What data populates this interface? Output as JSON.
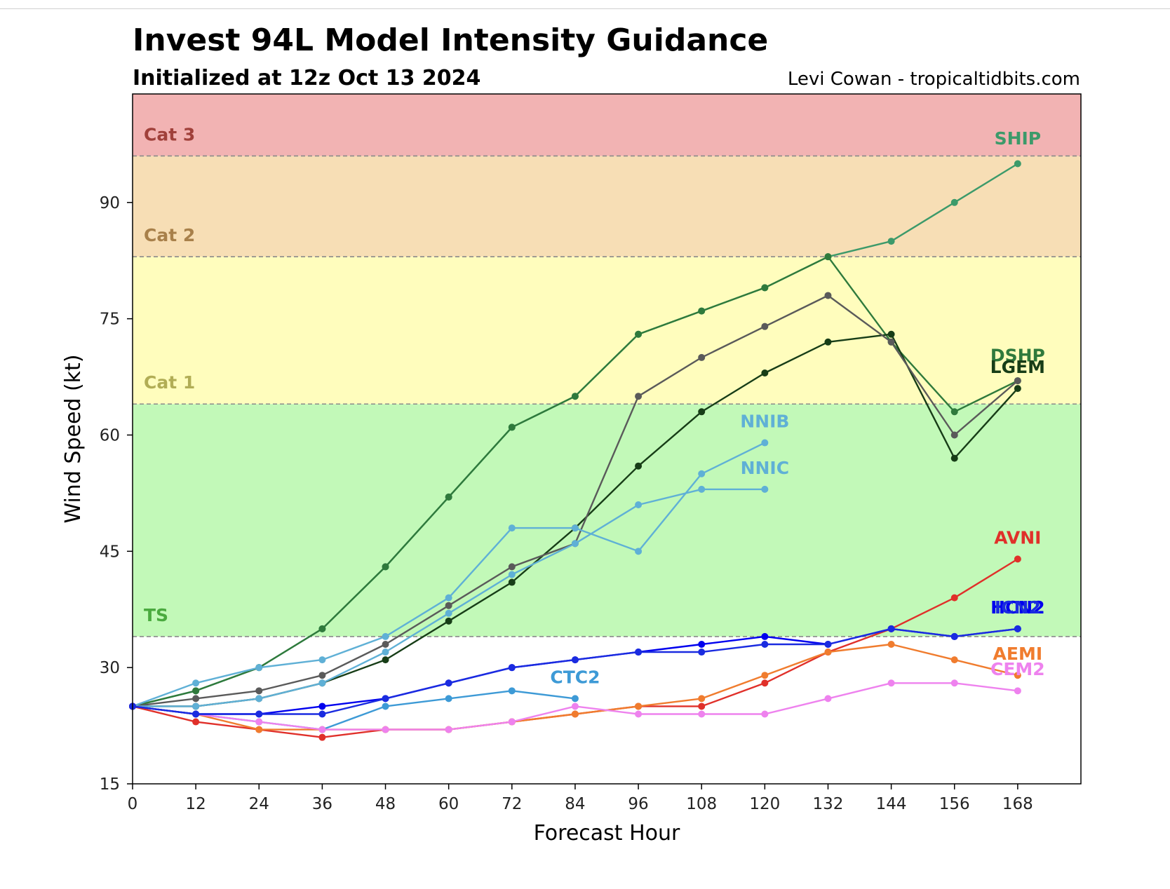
{
  "header": {
    "title": "Invest 94L Model Intensity Guidance",
    "subtitle": "Initialized at 12z Oct 13 2024",
    "credit": "Levi Cowan - tropicaltidbits.com"
  },
  "chart_data": {
    "type": "line",
    "xlabel": "Forecast Hour",
    "ylabel": "Wind Speed (kt)",
    "xlim": [
      0,
      180
    ],
    "ylim": [
      15,
      104
    ],
    "xticks": [
      0,
      12,
      24,
      36,
      48,
      60,
      72,
      84,
      96,
      108,
      120,
      132,
      144,
      156,
      168
    ],
    "yticks": [
      15,
      30,
      45,
      60,
      75,
      90
    ],
    "grid": false,
    "bands": [
      {
        "label": "",
        "from": 15,
        "to": 34,
        "color": "#ffffff"
      },
      {
        "label": "TS",
        "from": 34,
        "to": 64,
        "color": "#c2f9b8",
        "text_color": "#4aaa3f"
      },
      {
        "label": "Cat 1",
        "from": 64,
        "to": 83,
        "color": "#fffdbd",
        "text_color": "#b1ad55"
      },
      {
        "label": "Cat 2",
        "from": 83,
        "to": 96,
        "color": "#f7deb5",
        "text_color": "#a8804a"
      },
      {
        "label": "Cat 3",
        "from": 96,
        "to": 104,
        "color": "#f2b3b3",
        "text_color": "#a0403a"
      }
    ],
    "series": [
      {
        "name": "SHIP",
        "color": "#3c9a6a",
        "x": [
          0,
          12,
          24,
          36,
          48,
          60,
          72,
          84,
          96,
          108,
          120,
          132,
          144,
          156,
          168
        ],
        "values": [
          25,
          27,
          30,
          35,
          43,
          52,
          61,
          65,
          73,
          76,
          79,
          83,
          85,
          90,
          95
        ]
      },
      {
        "name": "DSHP",
        "color": "#2f7a3c",
        "x": [
          0,
          12,
          24,
          36,
          48,
          60,
          72,
          84,
          96,
          108,
          120,
          132,
          144,
          156,
          168
        ],
        "values": [
          25,
          27,
          30,
          35,
          43,
          52,
          61,
          65,
          73,
          76,
          79,
          83,
          72,
          63,
          67
        ]
      },
      {
        "name": "LGEM",
        "color": "#173d17",
        "x": [
          0,
          12,
          24,
          36,
          48,
          60,
          72,
          84,
          96,
          108,
          120,
          132,
          144,
          156,
          168
        ],
        "values": [
          25,
          25,
          26,
          28,
          31,
          36,
          41,
          48,
          56,
          63,
          68,
          72,
          73,
          57,
          66
        ]
      },
      {
        "name": "",
        "color": "#5a5a5a",
        "x": [
          0,
          12,
          24,
          36,
          48,
          60,
          72,
          84,
          96,
          108,
          120,
          132,
          144,
          156,
          168
        ],
        "values": [
          25,
          26,
          27,
          29,
          33,
          38,
          43,
          46,
          65,
          70,
          74,
          78,
          72,
          60,
          67
        ]
      },
      {
        "name": "NNIB",
        "color": "#5fb0d6",
        "x": [
          0,
          12,
          24,
          36,
          48,
          60,
          72,
          84,
          96,
          108,
          120
        ],
        "values": [
          25,
          28,
          30,
          31,
          34,
          39,
          48,
          48,
          45,
          55,
          59
        ]
      },
      {
        "name": "NNIC",
        "color": "#5fb0d6",
        "x": [
          0,
          12,
          24,
          36,
          48,
          60,
          72,
          84,
          96,
          108,
          120
        ],
        "values": [
          25,
          25,
          26,
          28,
          32,
          37,
          42,
          46,
          51,
          53,
          53
        ]
      },
      {
        "name": "CTC2",
        "color": "#3d9ad6",
        "x": [
          0,
          12,
          24,
          36,
          48,
          60,
          72,
          84
        ],
        "values": [
          25,
          24,
          23,
          22,
          25,
          26,
          27,
          26
        ]
      },
      {
        "name": "AVNI",
        "color": "#e0302a",
        "x": [
          0,
          12,
          24,
          36,
          48,
          60,
          72,
          84,
          96,
          108,
          120,
          132,
          144,
          156,
          168
        ],
        "values": [
          25,
          23,
          22,
          21,
          22,
          22,
          23,
          24,
          25,
          25,
          28,
          32,
          35,
          39,
          44
        ]
      },
      {
        "name": "AEMI",
        "color": "#f07c2e",
        "x": [
          0,
          12,
          24,
          36,
          48,
          60,
          72,
          84,
          96,
          108,
          120,
          132,
          144,
          156,
          168
        ],
        "values": [
          25,
          24,
          22,
          22,
          22,
          22,
          23,
          24,
          25,
          26,
          29,
          32,
          33,
          31,
          29
        ]
      },
      {
        "name": "CEM2",
        "color": "#ee82ee",
        "x": [
          0,
          12,
          24,
          36,
          48,
          60,
          72,
          84,
          96,
          108,
          120,
          132,
          144,
          156,
          168
        ],
        "values": [
          25,
          24,
          23,
          22,
          22,
          22,
          23,
          25,
          24,
          24,
          24,
          26,
          28,
          28,
          27
        ]
      },
      {
        "name": "HCN2",
        "color": "#0000ee",
        "x": [
          0,
          12,
          24,
          36,
          48,
          60,
          72,
          84,
          96,
          108,
          120,
          132,
          144,
          156,
          168
        ],
        "values": [
          25,
          24,
          24,
          25,
          26,
          28,
          30,
          31,
          32,
          33,
          34,
          33,
          35,
          34,
          35
        ]
      },
      {
        "name": "ICN2",
        "color": "#1a2be0",
        "x": [
          0,
          12,
          24,
          36,
          48,
          60,
          72,
          84,
          96,
          108,
          120,
          132,
          144,
          156,
          168
        ],
        "values": [
          25,
          24,
          24,
          24,
          26,
          28,
          30,
          31,
          32,
          32,
          33,
          33,
          35,
          34,
          35
        ]
      }
    ],
    "labels": [
      {
        "text": "SHIP",
        "color": "#3c9a6a",
        "x": 168,
        "y": 97.5
      },
      {
        "text": "DSHP",
        "color": "#2f7a3c",
        "x": 168,
        "y": 69.5
      },
      {
        "text": "LGEM",
        "color": "#173d17",
        "x": 168,
        "y": 68.0
      },
      {
        "text": "NNIB",
        "color": "#5fb0d6",
        "x": 120,
        "y": 61.0
      },
      {
        "text": "NNIC",
        "color": "#5fb0d6",
        "x": 120,
        "y": 55.0
      },
      {
        "text": "CTC2",
        "color": "#3d9ad6",
        "x": 84,
        "y": 28.0
      },
      {
        "text": "AVNI",
        "color": "#e0302a",
        "x": 168,
        "y": 46.0
      },
      {
        "text": "AEMI",
        "color": "#f07c2e",
        "x": 168,
        "y": 31.0
      },
      {
        "text": "CEM2",
        "color": "#ee82ee",
        "x": 168,
        "y": 29.0
      },
      {
        "text": "HCN2",
        "color": "#0000ee",
        "x": 168,
        "y": 37.0
      },
      {
        "text": "ICN2",
        "color": "#1a2be0",
        "x": 168,
        "y": 37.0
      }
    ]
  }
}
